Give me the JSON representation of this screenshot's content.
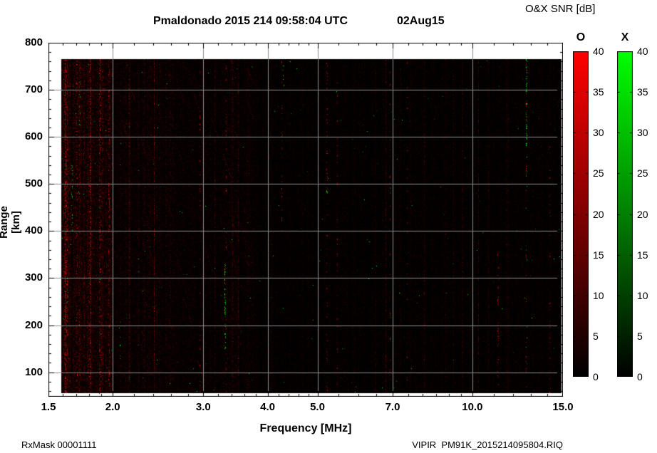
{
  "header": {
    "title": "Pmaldonado 2015 214 09:58:04 UTC",
    "date": "02Aug15"
  },
  "colorbar_panel": {
    "title": "O&X SNR [dB]",
    "bars": [
      {
        "label": "O",
        "color": "#ff0000",
        "min": 0,
        "max": 40,
        "ticks": [
          0,
          5,
          10,
          15,
          20,
          25,
          30,
          35,
          40
        ]
      },
      {
        "label": "X",
        "color": "#00ff00",
        "min": 0,
        "max": 40,
        "ticks": [
          0,
          5,
          10,
          15,
          20,
          25,
          30,
          35,
          40
        ]
      }
    ]
  },
  "footer": {
    "rx_mask": "RxMask 00001111",
    "file_name": "VIPIR  PM91K_2015214095804.RIQ"
  },
  "chart_data": {
    "type": "heatmap",
    "title": "Pmaldonado 2015 214 09:58:04 UTC  02Aug15",
    "xlabel": "Frequency [MHz]",
    "ylabel": "Range [km]",
    "x_scale": "log",
    "xlim": [
      1.5,
      15.0
    ],
    "ylim": [
      48,
      800
    ],
    "x_major_ticks": [
      1.5,
      2.0,
      3.0,
      4.0,
      5.0,
      7.0,
      10.0,
      15.0
    ],
    "x_tick_labels": [
      "1.5",
      "2.0",
      "3.0",
      "4.0",
      "5.0",
      "7.0",
      "10.0",
      "15.0"
    ],
    "x_minor_ticks": [
      1.6,
      1.7,
      1.8,
      1.9,
      2.2,
      2.4,
      2.6,
      2.8,
      3.2,
      3.4,
      3.6,
      3.8,
      4.2,
      4.4,
      4.6,
      4.8,
      5.5,
      6.0,
      6.5,
      7.5,
      8.0,
      8.5,
      9.0,
      9.5,
      11.0,
      12.0,
      13.0,
      14.0
    ],
    "y_major_ticks": [
      100,
      200,
      300,
      400,
      500,
      600,
      700,
      800
    ],
    "y_tick_labels": [
      "100",
      "200",
      "300",
      "400",
      "500",
      "600",
      "700",
      "800"
    ],
    "y_minor_step": 20,
    "grid": true,
    "grid_color": "#8e8e8e",
    "plot_bg": "#ffffff",
    "data_bg": "#000000",
    "data_extent": {
      "f": [
        1.59,
        14.9
      ],
      "km": [
        55,
        765
      ]
    },
    "colorbar_min": 0,
    "colorbar_max": 40,
    "colorbar_units": "dB",
    "o_color": "#ff0000",
    "x_color": "#00ff00",
    "content": {
      "description": "Receiver-noise ionogram: mostly near-zero SNR speckle (dark red O-mode, dark green X-mode) on black; dense red RFI band 1.6-2.0 MHz with scattered bright green X-mode points; dotted diagonal interference 2.0-3.7 MHz; green streak near 3.3 MHz (150-330 km) and near 12.7 MHz (580-770 km); faint red RFI columns near 2.95, 3.3, 4.25, 5.2, 5.45, 6.9, 7.45, 11.2, 12.7 and 14.1 MHz.",
      "seed": 20150802,
      "noise_features": [
        {
          "f": 1.62,
          "km": [
            55,
            765
          ],
          "color": "red",
          "density": 220,
          "width": 3
        },
        {
          "f": 1.7,
          "km": [
            55,
            765
          ],
          "color": "red",
          "density": 120,
          "width": 2
        },
        {
          "f": 1.8,
          "km": [
            55,
            765
          ],
          "color": "red",
          "density": 90,
          "width": 2
        },
        {
          "f": 1.88,
          "km": [
            55,
            765
          ],
          "color": "red",
          "density": 200,
          "width": 3
        },
        {
          "f": 1.96,
          "km": [
            55,
            765
          ],
          "color": "red",
          "density": 120,
          "width": 2
        },
        {
          "f": 1.66,
          "km": [
            390,
            540
          ],
          "color": "green",
          "density": 26,
          "width": 2
        },
        {
          "f": 1.63,
          "km": [
            230,
            310
          ],
          "color": "green",
          "density": 10,
          "width": 2
        },
        {
          "f": 1.72,
          "km": [
            600,
            720
          ],
          "color": "green",
          "density": 8,
          "width": 2
        },
        {
          "f": 2.06,
          "km": [
            120,
            210
          ],
          "color": "green",
          "density": 8,
          "width": 2
        },
        {
          "f": 2.95,
          "km": [
            55,
            765
          ],
          "color": "red",
          "density": 40,
          "width": 1
        },
        {
          "f": 3.3,
          "km": [
            150,
            330
          ],
          "color": "green",
          "density": 50,
          "width": 2
        },
        {
          "f": 3.32,
          "km": [
            55,
            765
          ],
          "color": "red",
          "density": 45,
          "width": 1
        },
        {
          "f": 4.25,
          "km": [
            400,
            765
          ],
          "color": "red",
          "density": 30,
          "width": 1
        },
        {
          "f": 4.28,
          "km": [
            700,
            760
          ],
          "color": "green",
          "density": 6,
          "width": 2
        },
        {
          "f": 5.2,
          "km": [
            55,
            765
          ],
          "color": "red",
          "density": 60,
          "width": 2
        },
        {
          "f": 5.2,
          "km": [
            478,
            500
          ],
          "color": "green",
          "density": 5,
          "width": 2
        },
        {
          "f": 5.45,
          "km": [
            55,
            765
          ],
          "color": "red",
          "density": 40,
          "width": 1
        },
        {
          "f": 6.9,
          "km": [
            55,
            765
          ],
          "color": "red",
          "density": 30,
          "width": 1
        },
        {
          "f": 7.45,
          "km": [
            55,
            765
          ],
          "color": "red",
          "density": 25,
          "width": 1
        },
        {
          "f": 11.2,
          "km": [
            55,
            360
          ],
          "color": "red",
          "density": 45,
          "width": 2
        },
        {
          "f": 12.7,
          "km": [
            580,
            770
          ],
          "color": "green",
          "density": 60,
          "width": 2
        },
        {
          "f": 12.7,
          "km": [
            100,
            580
          ],
          "color": "green",
          "density": 14,
          "width": 2
        },
        {
          "f": 12.72,
          "km": [
            55,
            765
          ],
          "color": "red",
          "density": 30,
          "width": 1
        },
        {
          "f": 14.1,
          "km": [
            55,
            765
          ],
          "color": "red",
          "density": 25,
          "width": 1
        }
      ]
    }
  }
}
